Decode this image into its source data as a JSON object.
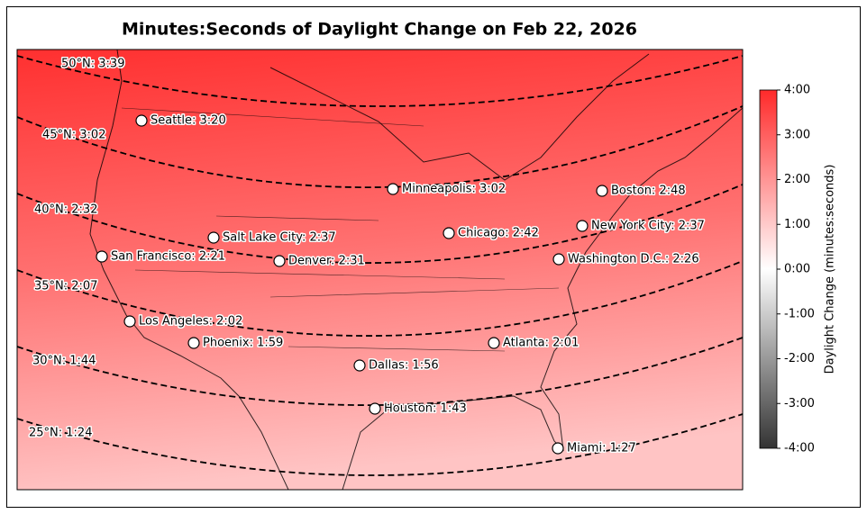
{
  "title": "Minutes:Seconds of Daylight Change on Feb 22, 2026",
  "latitude_lines": [
    {
      "label": "50°N: 3:39"
    },
    {
      "label": "45°N: 3:02"
    },
    {
      "label": "40°N: 2:32"
    },
    {
      "label": "35°N: 2:07"
    },
    {
      "label": "30°N: 1:44"
    },
    {
      "label": "25°N: 1:24"
    }
  ],
  "cities": [
    {
      "label": "Seattle: 3:20"
    },
    {
      "label": "Minneapolis: 3:02"
    },
    {
      "label": "Boston: 2:48"
    },
    {
      "label": "Salt Lake City: 2:37"
    },
    {
      "label": "Chicago: 2:42"
    },
    {
      "label": "New York City: 2:37"
    },
    {
      "label": "San Francisco: 2:21"
    },
    {
      "label": "Denver: 2:31"
    },
    {
      "label": "Washington D.C.: 2:26"
    },
    {
      "label": "Los Angeles: 2:02"
    },
    {
      "label": "Phoenix: 1:59"
    },
    {
      "label": "Atlanta: 2:01"
    },
    {
      "label": "Dallas: 1:56"
    },
    {
      "label": "Houston: 1:43"
    },
    {
      "label": "Miami: 1:27"
    }
  ],
  "colorbar": {
    "label": "Daylight Change (minutes:seconds)",
    "lim": [
      -4,
      4
    ],
    "ticks": [
      {
        "value": 4,
        "label": "4:00"
      },
      {
        "value": 3,
        "label": "3:00"
      },
      {
        "value": 2,
        "label": "2:00"
      },
      {
        "value": 1,
        "label": "1:00"
      },
      {
        "value": 0,
        "label": "0:00"
      },
      {
        "value": -1,
        "label": "-1:00"
      },
      {
        "value": -2,
        "label": "-2:00"
      },
      {
        "value": -3,
        "label": "-3:00"
      },
      {
        "value": -4,
        "label": "-4:00"
      }
    ]
  }
}
